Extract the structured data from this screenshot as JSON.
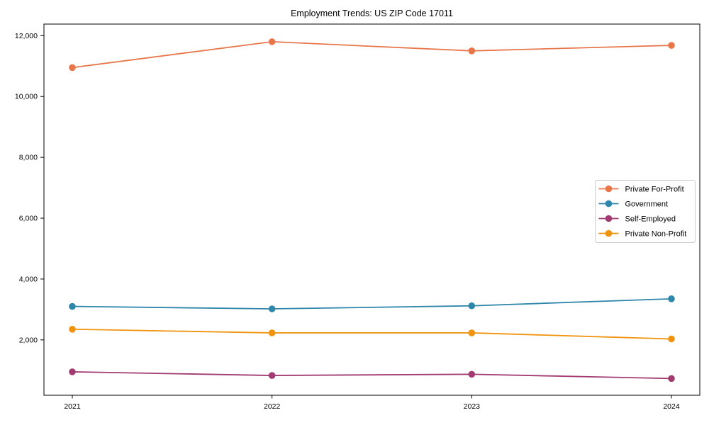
{
  "chart_data": {
    "type": "line",
    "title": "Employment Trends: US ZIP Code 17011",
    "categories": [
      "2021",
      "2022",
      "2023",
      "2024"
    ],
    "series": [
      {
        "name": "Private For-Profit",
        "color": "#E8764B",
        "values": [
          10950,
          11800,
          11500,
          11680
        ]
      },
      {
        "name": "Government",
        "color": "#2E86AB",
        "values": [
          3100,
          3020,
          3120,
          3350
        ]
      },
      {
        "name": "Self-Employed",
        "color": "#A23B72",
        "values": [
          950,
          830,
          870,
          730
        ]
      },
      {
        "name": "Private Non-Profit",
        "color": "#F0940F",
        "values": [
          2350,
          2230,
          2230,
          2030
        ]
      }
    ],
    "yticks": [
      2000,
      4000,
      6000,
      8000,
      10000,
      12000
    ],
    "ytick_labels": [
      "2,000",
      "4,000",
      "6,000",
      "8,000",
      "10,000",
      "12,000"
    ],
    "ylim": [
      180,
      12380
    ],
    "xlabel": "",
    "ylabel": "",
    "grid": false,
    "legend_position": "center-right",
    "marker": "circle",
    "line_width": 1.8,
    "marker_radius": 4.8,
    "axis_color": "#000000",
    "legend_border_color": "#cccccc",
    "background_color": "#ffffff"
  }
}
